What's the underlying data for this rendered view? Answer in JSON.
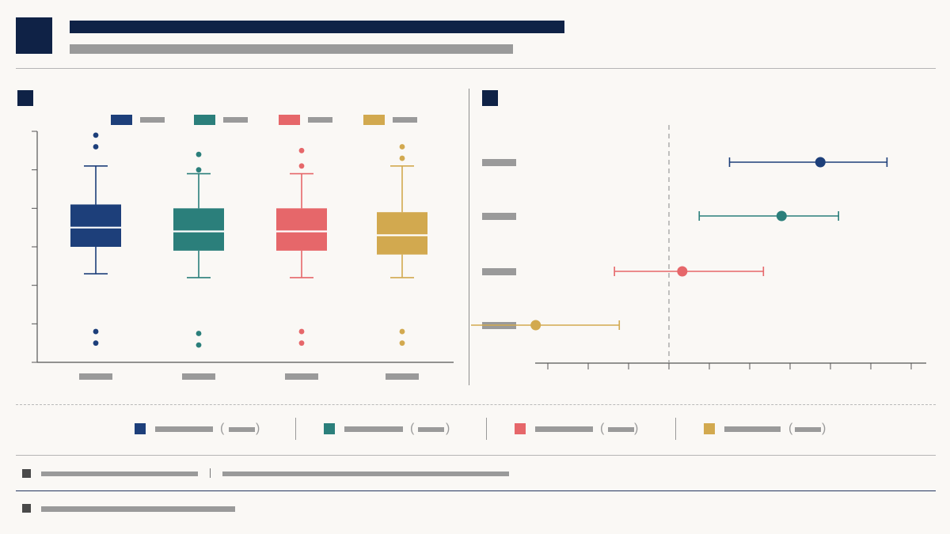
{
  "colors": {
    "navy": "#0f2246",
    "placeholder": "#9a9a9a",
    "rule": "#b5b5b5"
  },
  "header": {
    "logo_icon": "square-logo-icon",
    "title_placeholder": "redacted-title",
    "subtitle_placeholder": "redacted-subtitle"
  },
  "chart_data": [
    {
      "type": "box",
      "title": "",
      "y_ticks": 7,
      "grid": false,
      "legend_position": "top",
      "series": [
        {
          "color": "#1d3f7a",
          "min": 2.3,
          "q1": 3.0,
          "median": 3.5,
          "q3": 4.1,
          "max": 5.1,
          "outliers": [
            0.5,
            0.8,
            5.6,
            5.9
          ]
        },
        {
          "color": "#2b7f7b",
          "min": 2.2,
          "q1": 2.9,
          "median": 3.4,
          "q3": 4.0,
          "max": 4.9,
          "outliers": [
            0.45,
            0.75,
            5.0,
            5.4
          ]
        },
        {
          "color": "#e6676a",
          "min": 2.2,
          "q1": 2.9,
          "median": 3.4,
          "q3": 4.0,
          "max": 4.9,
          "outliers": [
            0.5,
            0.8,
            5.1,
            5.5
          ]
        },
        {
          "color": "#d2a94f",
          "min": 2.2,
          "q1": 2.8,
          "median": 3.3,
          "q3": 3.9,
          "max": 5.1,
          "outliers": [
            0.5,
            0.8,
            5.3,
            5.6
          ]
        }
      ]
    },
    {
      "type": "forest",
      "title": "",
      "x_range": [
        -1.0,
        2.0
      ],
      "x_tick_count": 10,
      "reference_line": 0,
      "rows": [
        {
          "color": "#1d3f7a",
          "estimate": 1.25,
          "lower": 0.5,
          "upper": 1.8
        },
        {
          "color": "#2b7f7b",
          "estimate": 0.93,
          "lower": 0.25,
          "upper": 1.4
        },
        {
          "color": "#e6676a",
          "estimate": 0.11,
          "lower": -0.45,
          "upper": 0.78
        },
        {
          "color": "#d2a94f",
          "estimate": -1.1,
          "lower": -1.65,
          "upper": -0.41
        }
      ]
    }
  ]
}
